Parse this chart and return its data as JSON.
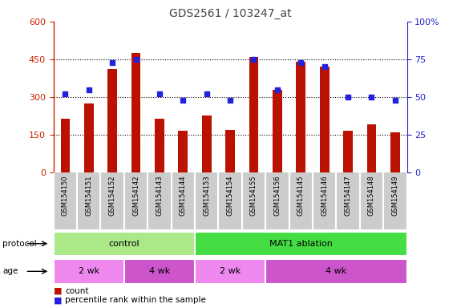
{
  "title": "GDS2561 / 103247_at",
  "samples": [
    "GSM154150",
    "GSM154151",
    "GSM154152",
    "GSM154142",
    "GSM154143",
    "GSM154144",
    "GSM154153",
    "GSM154154",
    "GSM154155",
    "GSM154156",
    "GSM154145",
    "GSM154146",
    "GSM154147",
    "GSM154148",
    "GSM154149"
  ],
  "counts": [
    215,
    275,
    410,
    475,
    215,
    165,
    225,
    170,
    460,
    330,
    440,
    420,
    165,
    190,
    160
  ],
  "percentiles": [
    52,
    55,
    73,
    75,
    52,
    48,
    52,
    48,
    75,
    55,
    73,
    70,
    50,
    50,
    48
  ],
  "bar_color": "#bb1100",
  "dot_color": "#2222dd",
  "ylim_left": [
    0,
    600
  ],
  "ylim_right": [
    0,
    100
  ],
  "yticks_left": [
    0,
    150,
    300,
    450,
    600
  ],
  "yticks_right": [
    0,
    25,
    50,
    75,
    100
  ],
  "ytick_labels_left": [
    "0",
    "150",
    "300",
    "450",
    "600"
  ],
  "ytick_labels_right": [
    "0",
    "25",
    "50",
    "75",
    "100%"
  ],
  "protocol_groups": [
    {
      "label": "control",
      "start": 0,
      "end": 6,
      "color": "#aae888"
    },
    {
      "label": "MAT1 ablation",
      "start": 6,
      "end": 15,
      "color": "#44dd44"
    }
  ],
  "age_groups": [
    {
      "label": "2 wk",
      "start": 0,
      "end": 3,
      "color": "#ee88ee"
    },
    {
      "label": "4 wk",
      "start": 3,
      "end": 6,
      "color": "#cc55cc"
    },
    {
      "label": "2 wk",
      "start": 6,
      "end": 9,
      "color": "#ee88ee"
    },
    {
      "label": "4 wk",
      "start": 9,
      "end": 15,
      "color": "#cc55cc"
    }
  ],
  "bg_color": "#ffffff",
  "plot_bg_color": "#ffffff",
  "xticklabel_bg": "#cccccc",
  "left_axis_color": "#cc2200",
  "right_axis_color": "#2222cc",
  "title_color": "#444444",
  "bar_width": 0.4
}
